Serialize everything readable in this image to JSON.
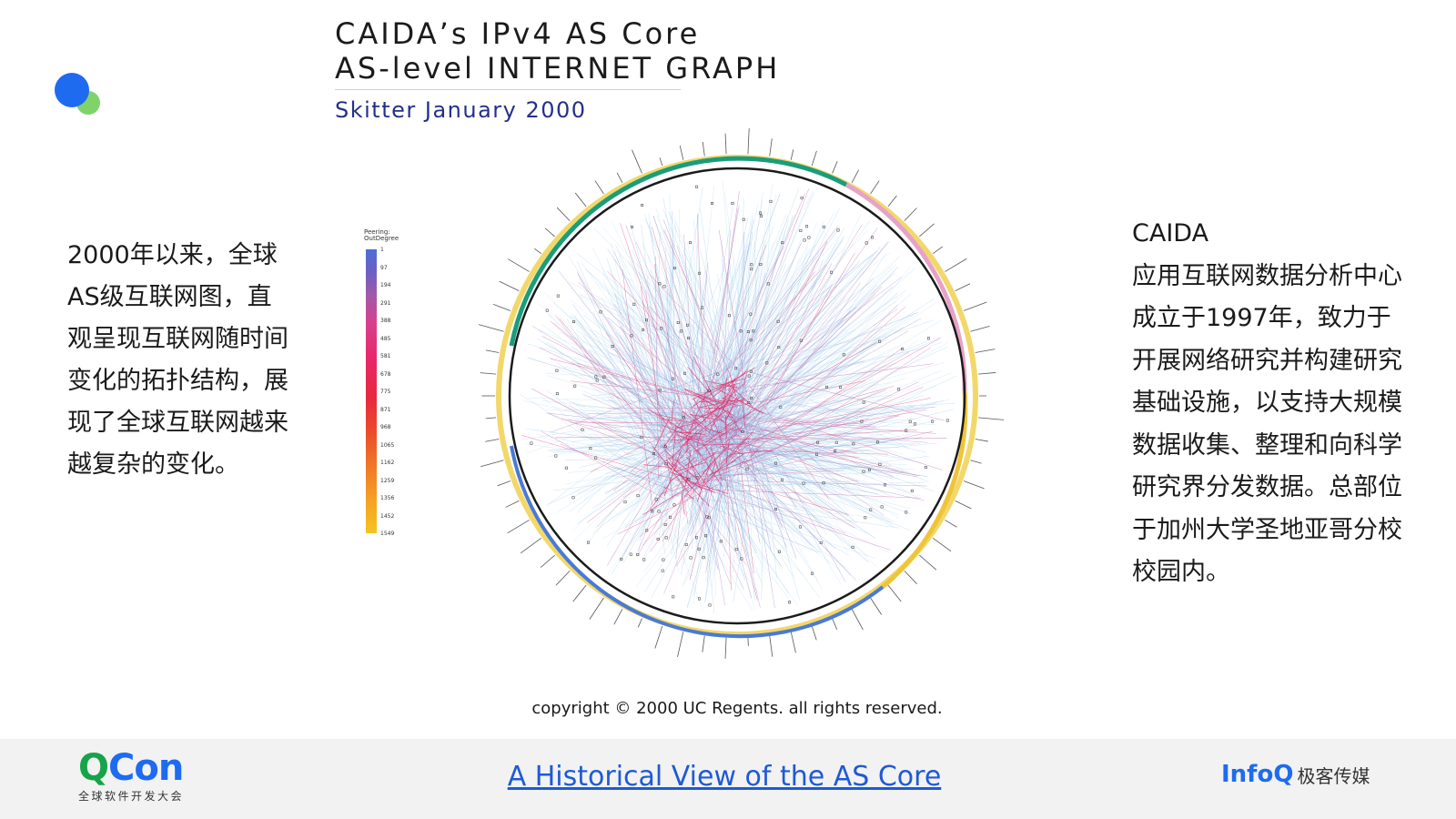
{
  "slide": {
    "title_line1": "CAIDA’s IPv4 AS Core",
    "title_line2": "AS-level INTERNET GRAPH",
    "subtitle": "Skitter January 2000",
    "left_text": "2000年以来，全球AS级互联网图，直观呈现互联网随时间变化的拓扑结构，展现了全球互联网越来越复杂的变化。",
    "right_heading": "CAIDA",
    "right_text": "应用互联网数据分析中心成立于1997年，致力于开展网络研究并构建研究基础设施，以支持大规模数据收集、整理和向科学研究界分发数据。总部位于加州大学圣地亚哥分校校园内。",
    "copyright": "copyright © 2000 UC Regents. all rights reserved."
  },
  "legend": {
    "title_line1": "Peering:",
    "title_line2": "OutDegree",
    "ticks": [
      "1",
      "97",
      "194",
      "291",
      "388",
      "485",
      "581",
      "678",
      "775",
      "871",
      "968",
      "1065",
      "1162",
      "1259",
      "1356",
      "1452",
      "1549"
    ]
  },
  "footer": {
    "qcon_q": "Q",
    "qcon_con": "Con",
    "qcon_sub": "全球软件开发大会",
    "link_text": "A Historical View of the AS Core",
    "infoq": "InfoQ",
    "infoq_cn": "极客传媒"
  },
  "colors": {
    "accent_blue": "#1e6bf0",
    "accent_green": "#7fd36a",
    "qcon_green": "#17a34a",
    "link_blue": "#1e5ad6",
    "subtitle_navy": "#23308a",
    "footer_bg": "#f2f2f2"
  },
  "icons": [
    "logo-dots-icon"
  ]
}
